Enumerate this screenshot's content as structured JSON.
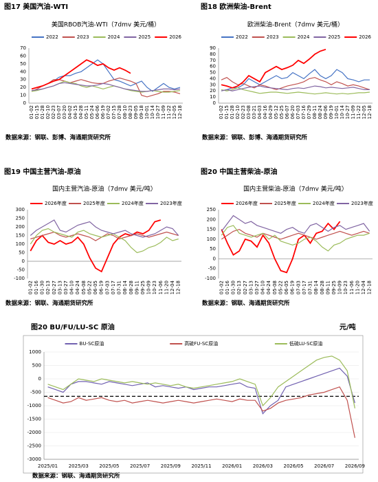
{
  "chart_data": [
    {
      "type": "line",
      "figure_label": "图17  美国汽油-WTI",
      "title": "美国RBOB汽油-WTI（7dmv 美元/桶）",
      "source": "数据来源：钢联、彭博、海通期货研究所",
      "categories": [
        "01-02",
        "01-15",
        "01-28",
        "02-10",
        "02-23",
        "03-07",
        "03-20",
        "04-02",
        "04-15",
        "04-28",
        "05-11",
        "05-24",
        "06-06",
        "06-19",
        "07-02",
        "07-15",
        "07-28",
        "08-10",
        "08-23",
        "09-05",
        "09-18",
        "10-01",
        "10-14",
        "10-27",
        "11-09",
        "11-22",
        "12-05",
        "12-18"
      ],
      "ylim": [
        0,
        70
      ],
      "yticks": [
        0,
        10,
        20,
        30,
        40,
        50,
        60,
        70
      ],
      "series": [
        {
          "name": "2022",
          "color": "#4472c4",
          "values": [
            18,
            20,
            22,
            25,
            28,
            33,
            35,
            35,
            38,
            40,
            45,
            50,
            55,
            50,
            40,
            30,
            28,
            25,
            22,
            25,
            28,
            20,
            15,
            20,
            25,
            20,
            18,
            20
          ]
        },
        {
          "name": "2023",
          "color": "#c0504d",
          "values": [
            15,
            18,
            22,
            25,
            30,
            30,
            28,
            26,
            28,
            30,
            28,
            26,
            25,
            25,
            28,
            30,
            32,
            30,
            28,
            25,
            10,
            8,
            10,
            12,
            15,
            15,
            14,
            12
          ]
        },
        {
          "name": "2024",
          "color": "#9bbb59",
          "values": [
            15,
            16,
            18,
            20,
            22,
            25,
            28,
            26,
            25,
            22,
            20,
            22,
            20,
            18,
            20,
            22,
            20,
            18,
            16,
            15,
            14,
            15,
            16,
            15,
            14,
            14,
            15,
            16
          ]
        },
        {
          "name": "2025",
          "color": "#8064a2",
          "values": [
            16,
            17,
            18,
            20,
            22,
            25,
            26,
            25,
            24,
            23,
            22,
            22,
            23,
            25,
            24,
            22,
            20,
            18,
            17,
            16,
            15,
            15,
            16,
            17,
            18,
            18,
            17,
            18
          ]
        },
        {
          "name": "2026",
          "color": "#ff0000",
          "values": [
            18,
            20,
            22,
            25,
            28,
            30,
            35,
            40,
            45,
            50,
            55,
            52,
            48,
            50,
            45,
            42,
            45,
            42,
            38,
            null,
            null,
            null,
            null,
            null,
            null,
            null,
            null,
            null
          ]
        }
      ]
    },
    {
      "type": "line",
      "figure_label": "图18  欧洲柴油-Brent",
      "title": "欧洲柴油-Brent（7dmv 美元/桶）",
      "source": "数据来源：钢联、彭博、海通期货研究所",
      "categories": [
        "01-02",
        "01-15",
        "01-28",
        "02-10",
        "02-23",
        "03-08",
        "03-21",
        "04-03",
        "04-16",
        "04-29",
        "05-12",
        "05-25",
        "06-07",
        "06-20",
        "07-03",
        "07-16",
        "07-29",
        "08-11",
        "08-24",
        "09-06",
        "09-19",
        "10-01",
        "10-14",
        "10-27",
        "11-09",
        "11-22",
        "12-05",
        "12-18"
      ],
      "ylim": [
        0,
        90
      ],
      "yticks": [
        0,
        10,
        20,
        30,
        40,
        50,
        60,
        70,
        80,
        90
      ],
      "series": [
        {
          "name": "2022",
          "color": "#4472c4",
          "values": [
            20,
            22,
            25,
            25,
            30,
            40,
            35,
            30,
            35,
            40,
            45,
            40,
            42,
            50,
            45,
            40,
            48,
            55,
            45,
            40,
            45,
            55,
            50,
            40,
            38,
            35,
            38,
            38
          ]
        },
        {
          "name": "2023",
          "color": "#c0504d",
          "values": [
            38,
            42,
            35,
            30,
            32,
            28,
            25,
            30,
            28,
            25,
            22,
            25,
            28,
            30,
            32,
            35,
            40,
            42,
            38,
            35,
            30,
            35,
            32,
            28,
            30,
            28,
            25,
            22
          ]
        },
        {
          "name": "2024",
          "color": "#9bbb59",
          "values": [
            22,
            20,
            22,
            25,
            22,
            20,
            18,
            16,
            17,
            18,
            18,
            17,
            16,
            17,
            18,
            17,
            16,
            15,
            16,
            17,
            16,
            15,
            16,
            15,
            16,
            17,
            17,
            18
          ]
        },
        {
          "name": "2025",
          "color": "#8064a2",
          "values": [
            20,
            22,
            20,
            22,
            24,
            26,
            27,
            28,
            26,
            25,
            24,
            23,
            22,
            24,
            25,
            24,
            26,
            28,
            27,
            25,
            26,
            25,
            24,
            25,
            26,
            24,
            22,
            22
          ]
        },
        {
          "name": "2026",
          "color": "#ff0000",
          "values": [
            30,
            28,
            25,
            28,
            35,
            45,
            40,
            35,
            50,
            55,
            60,
            55,
            58,
            62,
            70,
            65,
            72,
            80,
            85,
            88,
            null,
            null,
            null,
            null,
            null,
            null,
            null,
            null
          ]
        }
      ]
    },
    {
      "type": "line",
      "figure_label": "图19  中国主营汽油-原油",
      "title": "国内主营汽油-原油（7dmv 美元/吨）",
      "source": "数据来源：钢联、海通期货研究所",
      "categories": [
        "01-02",
        "01-16",
        "01-30",
        "02-13",
        "02-27",
        "03-13",
        "03-27",
        "04-10",
        "04-24",
        "05-08",
        "05-22",
        "06-05",
        "06-19",
        "07-03",
        "07-17",
        "07-31",
        "08-14",
        "08-28",
        "09-11",
        "09-25",
        "10-09",
        "10-23",
        "11-06",
        "11-20",
        "12-04",
        "12-18"
      ],
      "ylim": [
        -100,
        300
      ],
      "yticks": [
        -100,
        -50,
        0,
        50,
        100,
        150,
        200,
        250,
        300
      ],
      "series": [
        {
          "name": "2026年度",
          "color": "#ff0000",
          "values": [
            60,
            120,
            150,
            110,
            100,
            120,
            100,
            110,
            140,
            100,
            20,
            -40,
            -60,
            20,
            100,
            140,
            160,
            150,
            170,
            160,
            180,
            230,
            240,
            null,
            null,
            null
          ]
        },
        {
          "name": "2025年度",
          "color": "#c0504d",
          "values": [
            130,
            140,
            150,
            160,
            170,
            150,
            140,
            150,
            160,
            150,
            140,
            120,
            140,
            160,
            150,
            130,
            140,
            150,
            160,
            150,
            140,
            150,
            160,
            170,
            160,
            150
          ]
        },
        {
          "name": "2024年度",
          "color": "#9bbb59",
          "values": [
            100,
            150,
            180,
            190,
            170,
            160,
            150,
            140,
            170,
            180,
            160,
            150,
            140,
            150,
            160,
            140,
            120,
            80,
            50,
            60,
            80,
            90,
            110,
            140,
            120,
            130
          ]
        },
        {
          "name": "2023年度",
          "color": "#8064a2",
          "values": [
            150,
            180,
            200,
            220,
            240,
            180,
            170,
            190,
            210,
            220,
            230,
            200,
            180,
            170,
            160,
            170,
            180,
            160,
            150,
            140,
            150,
            160,
            180,
            200,
            190,
            150
          ]
        }
      ]
    },
    {
      "type": "line",
      "figure_label": "图20  中国主营柴油-原油",
      "title": "国内主营柴油-原油（7dmv 美元/吨）",
      "source": "数据来源：钢联、海通期货研究所",
      "categories": [
        "01-02",
        "01-16",
        "01-30",
        "02-13",
        "02-27",
        "03-13",
        "03-27",
        "04-10",
        "04-24",
        "05-08",
        "05-22",
        "06-05",
        "06-19",
        "07-03",
        "07-17",
        "07-31",
        "08-14",
        "08-28",
        "09-11",
        "09-25",
        "10-09",
        "10-23",
        "11-06",
        "11-20",
        "12-04",
        "12-18"
      ],
      "ylim": [
        -100,
        250
      ],
      "yticks": [
        -100,
        -50,
        0,
        50,
        100,
        150,
        200,
        250
      ],
      "series": [
        {
          "name": "2026年度",
          "color": "#ff0000",
          "values": [
            150,
            80,
            20,
            40,
            100,
            90,
            60,
            120,
            80,
            0,
            -60,
            -70,
            0,
            100,
            120,
            80,
            130,
            140,
            180,
            150,
            190,
            null,
            null,
            null,
            null,
            null
          ]
        },
        {
          "name": "2025年度",
          "color": "#c0504d",
          "values": [
            100,
            120,
            140,
            150,
            130,
            120,
            110,
            130,
            120,
            110,
            100,
            110,
            120,
            130,
            120,
            110,
            100,
            110,
            120,
            130,
            140,
            130,
            120,
            130,
            140,
            130
          ]
        },
        {
          "name": "2024年度",
          "color": "#9bbb59",
          "values": [
            120,
            160,
            170,
            130,
            120,
            110,
            120,
            130,
            100,
            120,
            90,
            80,
            70,
            80,
            100,
            110,
            90,
            60,
            40,
            70,
            80,
            100,
            110,
            120,
            120,
            130
          ]
        },
        {
          "name": "2023年度",
          "color": "#8064a2",
          "values": [
            140,
            180,
            220,
            200,
            180,
            190,
            170,
            160,
            150,
            140,
            130,
            150,
            160,
            140,
            130,
            170,
            180,
            160,
            140,
            160,
            170,
            150,
            160,
            170,
            180,
            140
          ]
        }
      ]
    },
    {
      "type": "line",
      "figure_label": "图20  BU/FU/LU-SC 原油",
      "unit": "元/吨",
      "source": "数据来源：钢联、海通期货研究所",
      "categories": [
        "2025/01",
        null,
        null,
        null,
        "2025/03",
        null,
        null,
        null,
        "2025/05",
        null,
        null,
        null,
        "2025/07",
        null,
        null,
        null,
        "2025/09",
        null,
        null,
        null,
        "2025/11",
        null,
        null,
        null,
        "2026/01",
        null,
        null,
        null,
        "2026/03",
        null,
        null,
        null,
        "2026/05",
        null,
        null,
        null,
        "2026/07",
        null,
        null,
        null,
        "2026/09"
      ],
      "ylim": [
        -3000,
        1000
      ],
      "yticks": [
        -3000,
        -2500,
        -2000,
        -1500,
        -1000,
        -500,
        0,
        500,
        1000
      ],
      "reference_line": -650,
      "series": [
        {
          "name": "BU-SC原油",
          "color": "#7060b0",
          "values": [
            -300,
            -400,
            -500,
            -200,
            -100,
            -100,
            -150,
            -200,
            -100,
            -150,
            -200,
            -250,
            -200,
            -150,
            -300,
            -250,
            -300,
            -350,
            -300,
            -400,
            -350,
            -300,
            -300,
            -250,
            -200,
            -150,
            -300,
            -350,
            -1300,
            -1000,
            -800,
            -300,
            -200,
            -100,
            0,
            100,
            200,
            300,
            400,
            100,
            -900
          ]
        },
        {
          "name": "高硫FU-SC原油",
          "color": "#c0504d",
          "values": [
            -700,
            -800,
            -900,
            -850,
            -700,
            -800,
            -750,
            -700,
            -800,
            -850,
            -800,
            -900,
            -850,
            -800,
            -850,
            -900,
            -850,
            -800,
            -850,
            -900,
            -850,
            -800,
            -750,
            -800,
            -850,
            -750,
            -800,
            -800,
            -1200,
            -1100,
            -900,
            -800,
            -750,
            -700,
            -600,
            -550,
            -500,
            -400,
            -300,
            -800,
            -2200
          ]
        },
        {
          "name": "低硫LU-SC原油",
          "color": "#9bbb59",
          "values": [
            -200,
            -300,
            -400,
            -200,
            0,
            -50,
            -100,
            0,
            -50,
            -100,
            -150,
            -100,
            -150,
            -200,
            -150,
            -200,
            -250,
            -200,
            -300,
            -350,
            -300,
            -250,
            -200,
            -150,
            -100,
            0,
            -100,
            -200,
            -1000,
            -700,
            -300,
            -100,
            100,
            300,
            500,
            700,
            800,
            850,
            700,
            300,
            -1100
          ]
        }
      ]
    }
  ]
}
